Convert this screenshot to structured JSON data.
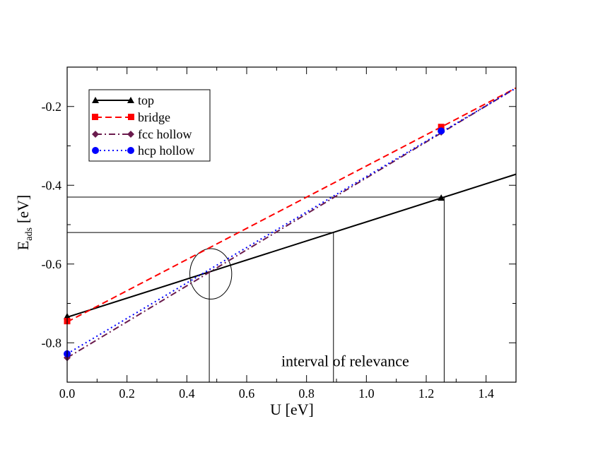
{
  "chart_data": {
    "type": "line",
    "title": "",
    "xlabel": "U [eV]",
    "ylabel_main": "E",
    "ylabel_sub": "ads",
    "ylabel_unit": "[eV]",
    "xlim": [
      0,
      1.5
    ],
    "ylim": [
      -0.9,
      -0.1
    ],
    "xticks": [
      0,
      0.2,
      0.4,
      0.6,
      0.8,
      1.0,
      1.2,
      1.4
    ],
    "xtick_labels": [
      "0.0",
      "0.2",
      "0.4",
      "0.6",
      "0.8",
      "1.0",
      "1.2",
      "1.4"
    ],
    "yticks": [
      -0.8,
      -0.6,
      -0.4,
      -0.2
    ],
    "ytick_labels": [
      "-0.8",
      "-0.6",
      "-0.4",
      "-0.2"
    ],
    "grid": false,
    "legend_position": "top-left",
    "series": [
      {
        "name": "top",
        "color": "#000000",
        "dash": "solid",
        "marker": "triangle",
        "line_x": [
          0,
          1.5
        ],
        "line_y": [
          -0.735,
          -0.372
        ],
        "points_x": [
          0,
          1.25
        ],
        "points_y": [
          -0.733,
          -0.432
        ]
      },
      {
        "name": "bridge",
        "color": "#ff0000",
        "dash": "dashed",
        "marker": "square",
        "line_x": [
          0,
          1.5
        ],
        "line_y": [
          -0.747,
          -0.153
        ],
        "points_x": [
          0,
          1.25
        ],
        "points_y": [
          -0.745,
          -0.252
        ]
      },
      {
        "name": "fcc hollow",
        "color": "#6a1b4d",
        "dash": "dashdot",
        "marker": "diamond",
        "line_x": [
          0,
          1.5
        ],
        "line_y": [
          -0.838,
          -0.153
        ],
        "points_x": [
          0,
          1.25
        ],
        "points_y": [
          -0.838,
          -0.265
        ]
      },
      {
        "name": "hcp hollow",
        "color": "#0000ff",
        "dash": "dotted",
        "marker": "circle",
        "line_x": [
          0,
          1.5
        ],
        "line_y": [
          -0.828,
          -0.153
        ],
        "points_x": [
          0,
          1.25
        ],
        "points_y": [
          -0.828,
          -0.262
        ]
      }
    ],
    "reference_lines": {
      "horizontal": [
        {
          "y": -0.43,
          "x_from": 0,
          "x_to": 1.26
        },
        {
          "y": -0.52,
          "x_from": 0,
          "x_to": 0.89
        }
      ],
      "vertical": [
        {
          "x": 0.475,
          "y_from": -0.9,
          "y_to": -0.62
        },
        {
          "x": 0.89,
          "y_from": -0.9,
          "y_to": -0.52
        },
        {
          "x": 1.26,
          "y_from": -0.9,
          "y_to": -0.43
        }
      ]
    },
    "annotations": {
      "interval_text": "interval of relevance",
      "interval_text_x": 1.0,
      "interval_text_y": -0.86,
      "circle_center": [
        0.48,
        -0.625
      ],
      "circle_radius_x": 0.07,
      "circle_radius_y": 0.064
    }
  }
}
